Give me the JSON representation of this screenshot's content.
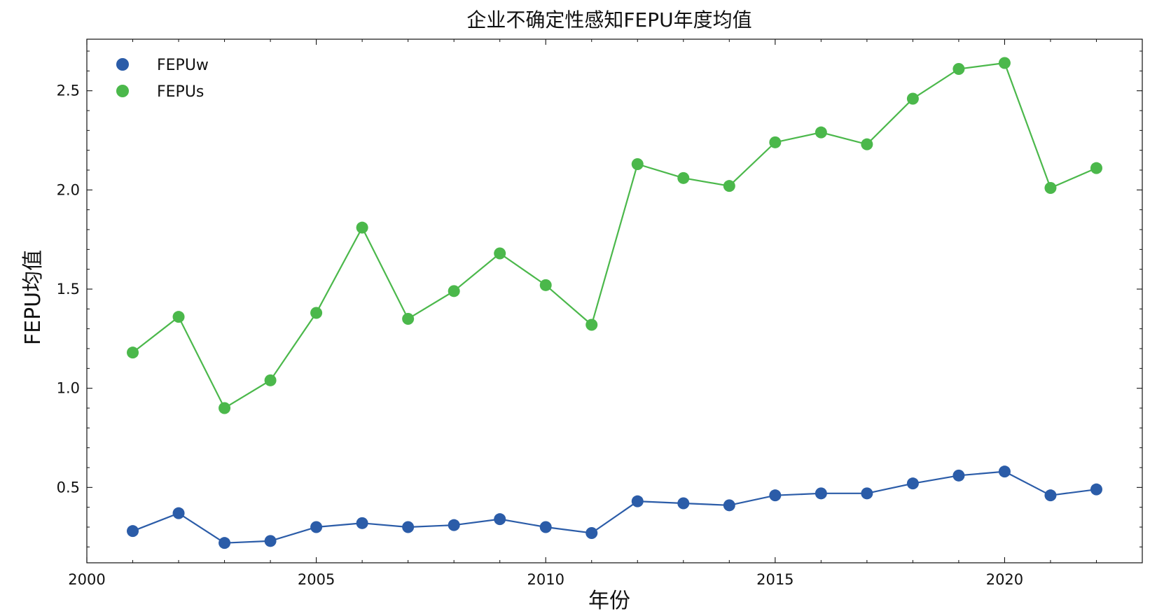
{
  "chart_data": {
    "type": "line",
    "title": "企业不确定性感知FEPU年度均值",
    "xlabel": "年份",
    "ylabel": "FEPU均值",
    "xlim": [
      2000,
      2023
    ],
    "ylim": [
      0.12,
      2.76
    ],
    "x_ticks": [
      2000,
      2005,
      2010,
      2015,
      2020
    ],
    "y_ticks": [
      0.5,
      1.0,
      1.5,
      2.0,
      2.5
    ],
    "y_tick_labels": [
      "0.5",
      "1.0",
      "1.5",
      "2.0",
      "2.5"
    ],
    "x": [
      2001,
      2002,
      2003,
      2004,
      2005,
      2006,
      2007,
      2008,
      2009,
      2010,
      2011,
      2012,
      2013,
      2014,
      2015,
      2016,
      2017,
      2018,
      2019,
      2020,
      2021,
      2022
    ],
    "series": [
      {
        "name": "FEPUw",
        "color": "#2b5ca8",
        "marker": "circle",
        "values": [
          0.28,
          0.37,
          0.22,
          0.23,
          0.3,
          0.32,
          0.3,
          0.31,
          0.34,
          0.3,
          0.27,
          0.43,
          0.42,
          0.41,
          0.46,
          0.47,
          0.47,
          0.52,
          0.56,
          0.58,
          0.46,
          0.49
        ]
      },
      {
        "name": "FEPUs",
        "color": "#4bb84b",
        "marker": "circle",
        "values": [
          1.18,
          1.36,
          0.9,
          1.04,
          1.38,
          1.81,
          1.35,
          1.49,
          1.68,
          1.52,
          1.32,
          2.13,
          2.06,
          2.02,
          2.24,
          2.29,
          2.23,
          2.46,
          2.61,
          2.64,
          2.01,
          2.11
        ]
      }
    ],
    "grid": false,
    "legend_position": "top-left"
  }
}
